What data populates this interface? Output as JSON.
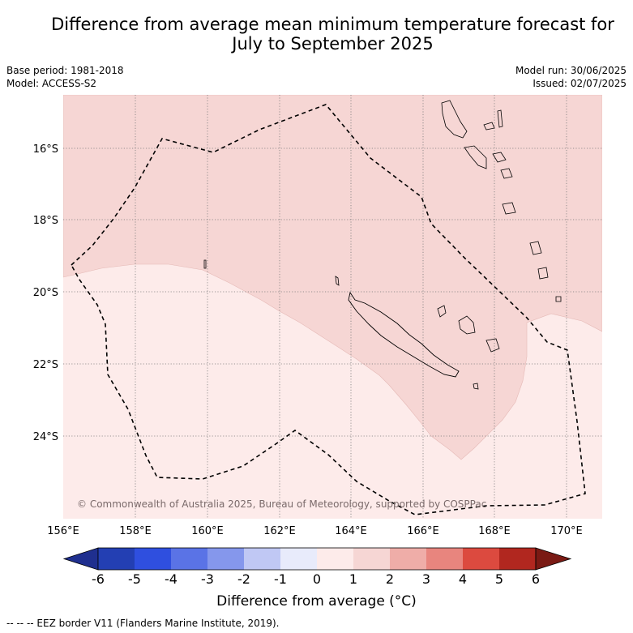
{
  "title_line1": "Difference from average mean minimum temperature forecast for",
  "title_line2": "July to September 2025",
  "meta": {
    "base_period": "Base period: 1981-2018",
    "model": "Model: ACCESS-S2",
    "model_run": "Model run: 30/06/2025",
    "issued": "Issued: 02/07/2025"
  },
  "map": {
    "lon_range": [
      156,
      171
    ],
    "lat_range": [
      -26.0,
      -14.2
    ],
    "lon_ticks": [
      "156°E",
      "158°E",
      "160°E",
      "162°E",
      "164°E",
      "166°E",
      "168°E",
      "170°E"
    ],
    "lat_ticks": [
      "16°S",
      "18°S",
      "20°S",
      "22°S",
      "24°S"
    ],
    "copyright": "© Commonwealth of Australia 2025, Bureau of Meteorology, supported by COSPPac",
    "fill_colors": {
      "0_to_1": "#fdebea",
      "1_to_2": "#f6d6d4"
    },
    "eez_style": "black dashed",
    "regions": [
      "New Caledonia",
      "Vanuatu",
      "Loyalty Islands"
    ]
  },
  "colorbar": {
    "title": "Difference from average (°C)",
    "ticks": [
      "-6",
      "-5",
      "-4",
      "-3",
      "-2",
      "-1",
      "0",
      "1",
      "2",
      "3",
      "4",
      "5",
      "6"
    ],
    "colors": [
      "#1f2f8f",
      "#233fb3",
      "#2f4fdf",
      "#5a73e6",
      "#8597ec",
      "#c0c8f4",
      "#e8ebfb",
      "#fdebea",
      "#f6d6d4",
      "#efada8",
      "#e8857e",
      "#dc4a3f",
      "#b1271f",
      "#7a1a14"
    ]
  },
  "footnote": "-- -- -- EEZ border V11 (Flanders Marine Institute, 2019)."
}
